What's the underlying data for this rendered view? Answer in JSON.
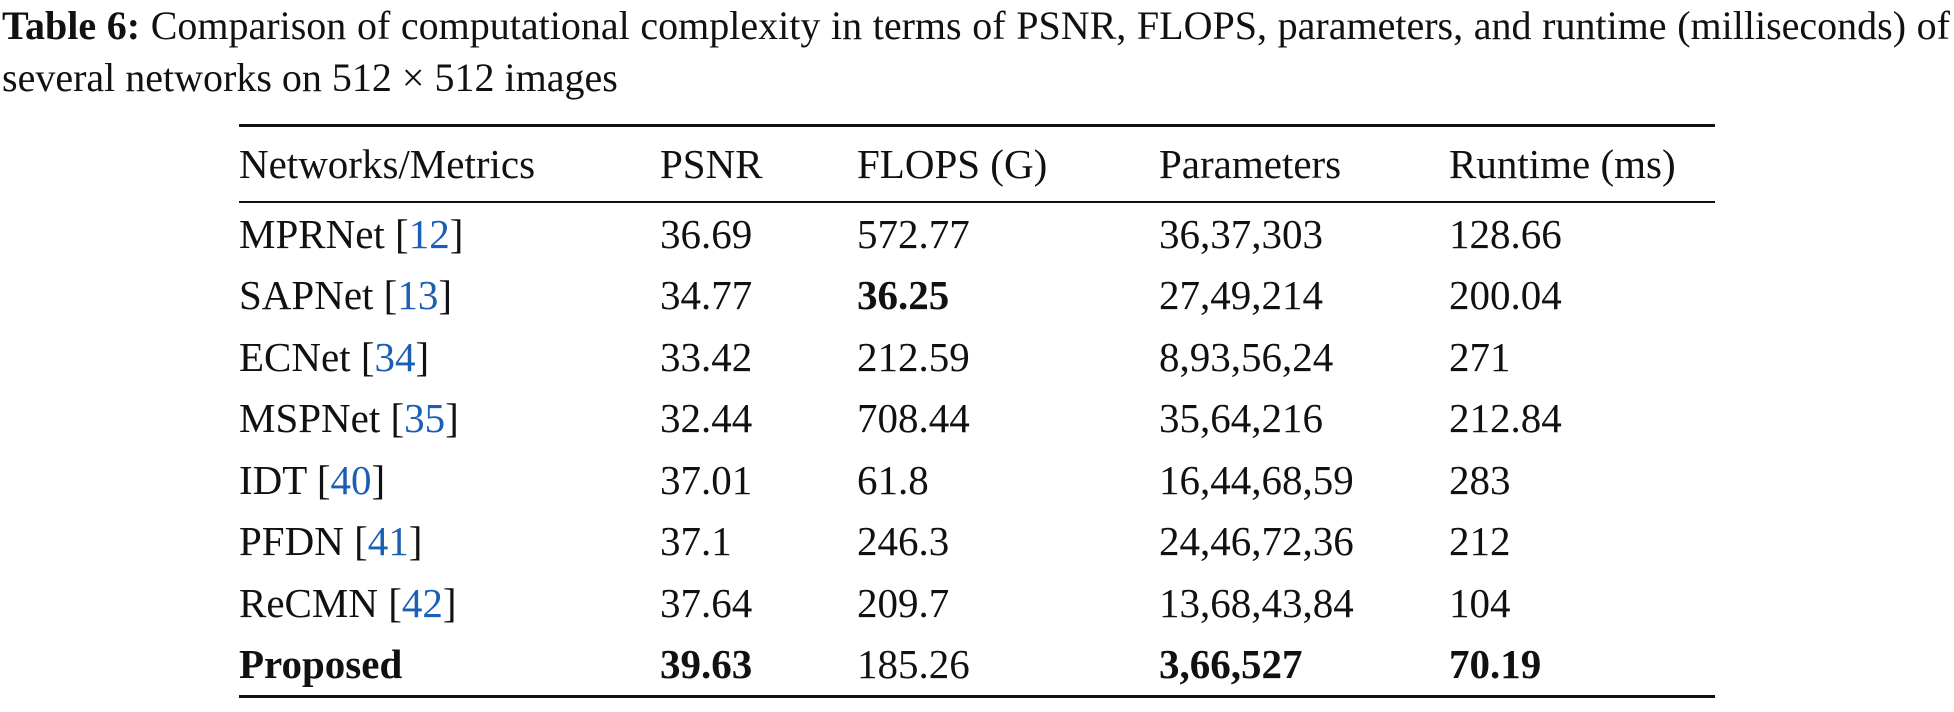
{
  "caption": {
    "label": "Table 6:",
    "text": "Comparison of computational complexity in terms of PSNR, FLOPS, parameters, and runtime (milliseconds) of several networks on 512 × 512 images"
  },
  "table": {
    "headers": [
      "Networks/Metrics",
      "PSNR",
      "FLOPS (G)",
      "Parameters",
      "Runtime (ms)"
    ],
    "rows": [
      {
        "network": [
          "MPRNet [",
          "12",
          "]"
        ],
        "cells": [
          "36.69",
          "572.77",
          "36,37,303",
          "128.66"
        ]
      },
      {
        "network": [
          "SAPNet [",
          "13",
          "]"
        ],
        "cells": [
          "34.77",
          {
            "text": "36.25",
            "bold": true
          },
          "27,49,214",
          "200.04"
        ]
      },
      {
        "network": [
          "ECNet [",
          "34",
          "]"
        ],
        "cells": [
          "33.42",
          "212.59",
          "8,93,56,24",
          "271"
        ]
      },
      {
        "network": [
          "MSPNet [",
          "35",
          "]"
        ],
        "cells": [
          "32.44",
          "708.44",
          "35,64,216",
          "212.84"
        ]
      },
      {
        "network": [
          "IDT [",
          "40",
          "]"
        ],
        "cells": [
          "37.01",
          "61.8",
          "16,44,68,59",
          "283"
        ]
      },
      {
        "network": [
          "PFDN [",
          "41",
          "]"
        ],
        "cells": [
          "37.1",
          "246.3",
          "24,46,72,36",
          "212"
        ]
      },
      {
        "network": [
          "ReCMN [",
          "42",
          "]"
        ],
        "cells": [
          "37.64",
          "209.7",
          "13,68,43,84",
          "104"
        ]
      },
      {
        "network": [
          {
            "text": "Proposed",
            "bold": true
          }
        ],
        "cells": [
          {
            "text": "39.63",
            "bold": true
          },
          "185.26",
          {
            "text": "3,66,527",
            "bold": true
          },
          {
            "text": "70.19",
            "bold": true
          }
        ]
      }
    ]
  }
}
